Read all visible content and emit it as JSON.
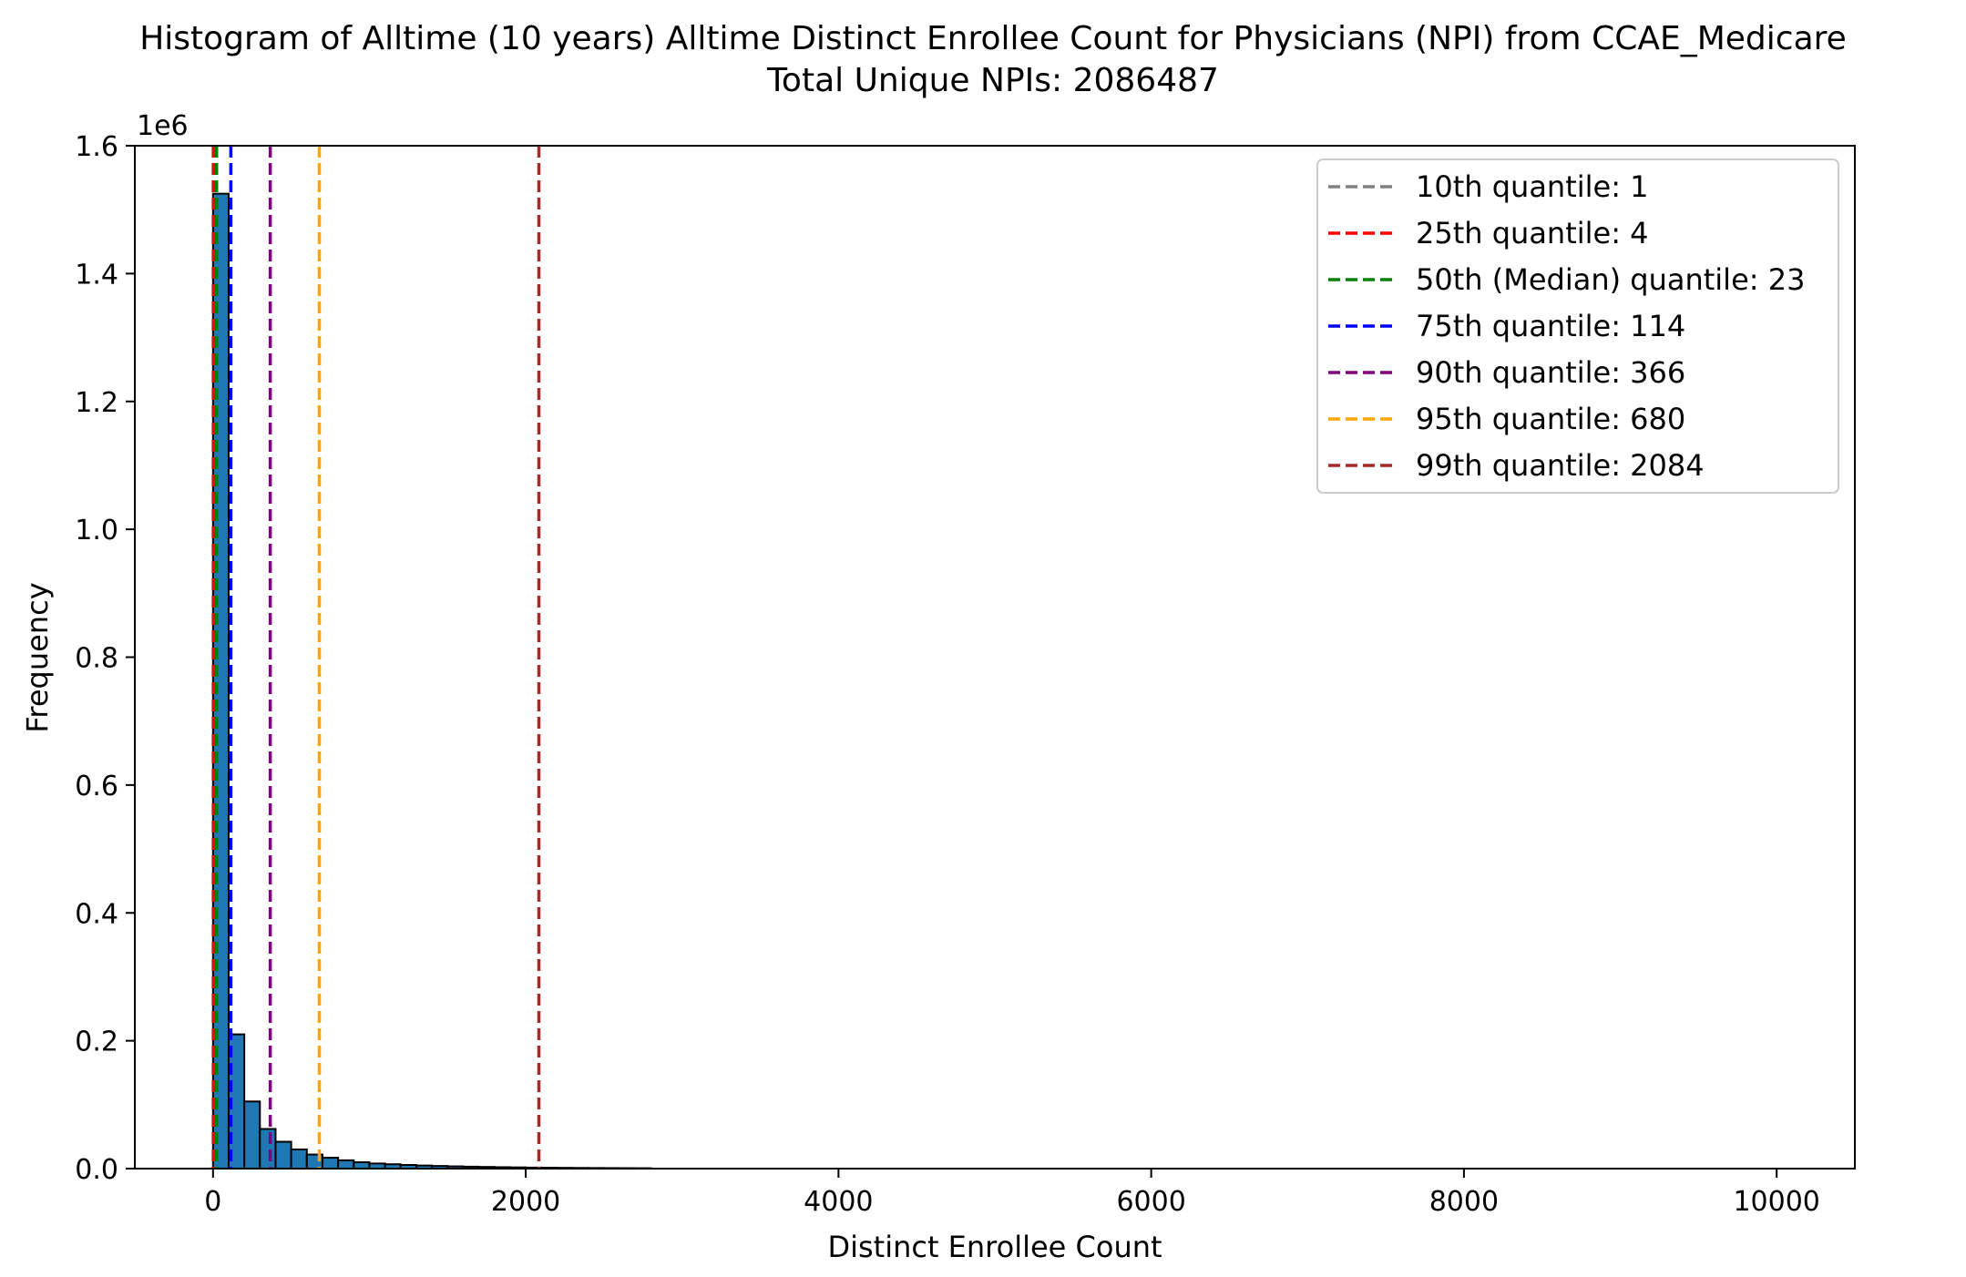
{
  "chart_data": {
    "type": "bar",
    "title": "Histogram of Alltime (10 years) Alltime Distinct Enrollee Count for Physicians (NPI) from CCAE_Medicare",
    "subtitle": "Total Unique NPIs: 2086487",
    "xlabel": "Distinct Enrollee Count",
    "ylabel": "Frequency",
    "y_multiplier_label": "1e6",
    "xlim": [
      -500,
      10500
    ],
    "ylim": [
      0,
      1.6
    ],
    "x_ticks": [
      0,
      2000,
      4000,
      6000,
      8000,
      10000
    ],
    "x_tick_labels": [
      "0",
      "2000",
      "4000",
      "6000",
      "8000",
      "10000"
    ],
    "y_ticks": [
      0.0,
      0.2,
      0.4,
      0.6,
      0.8,
      1.0,
      1.2,
      1.4,
      1.6
    ],
    "y_tick_labels": [
      "0.0",
      "0.2",
      "0.4",
      "0.6",
      "0.8",
      "1.0",
      "1.2",
      "1.4",
      "1.6"
    ],
    "bin_width": 100,
    "bin_start": 0,
    "bar_color": "#1f77b4",
    "bar_edge_color": "#000000",
    "values": [
      1.525,
      0.21,
      0.105,
      0.062,
      0.042,
      0.03,
      0.022,
      0.017,
      0.013,
      0.01,
      0.008,
      0.0068,
      0.0057,
      0.0048,
      0.0041,
      0.0035,
      0.003,
      0.0026,
      0.0022,
      0.0019,
      0.0016,
      0.0014,
      0.0012,
      0.001,
      0.0009,
      0.0008,
      0.0007,
      0.0006
    ],
    "quantile_lines": [
      {
        "label": "10th quantile: 1",
        "value": 1,
        "color": "#808080"
      },
      {
        "label": "25th quantile: 4",
        "value": 4,
        "color": "#ff0000"
      },
      {
        "label": "50th (Median) quantile: 23",
        "value": 23,
        "color": "#008000"
      },
      {
        "label": "75th quantile: 114",
        "value": 114,
        "color": "#0000ff"
      },
      {
        "label": "90th quantile: 366",
        "value": 366,
        "color": "#800080"
      },
      {
        "label": "95th quantile: 680",
        "value": 680,
        "color": "#ffa500"
      },
      {
        "label": "99th quantile: 2084",
        "value": 2084,
        "color": "#a52a2a"
      }
    ],
    "legend_position": "top-right",
    "grid": false
  }
}
